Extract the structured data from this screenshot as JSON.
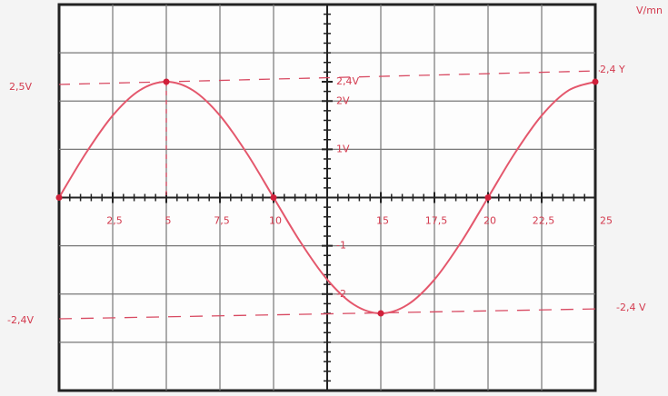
{
  "chart_data": {
    "type": "line",
    "xlim": [
      0,
      25
    ],
    "ylim": [
      -4,
      4
    ],
    "xticks": [
      {
        "value": 2.5,
        "label": "2,5"
      },
      5,
      {
        "value": 7.5,
        "label": "7,5"
      },
      10,
      15,
      {
        "value": 17.5,
        "label": "17,5"
      },
      20,
      {
        "value": 22.5,
        "label": "22,5"
      },
      25
    ],
    "yticks": [
      {
        "value": 2.4,
        "label": "2,4V"
      },
      {
        "value": 2,
        "label": "2V"
      },
      {
        "value": 1,
        "label": "1V"
      },
      -1,
      -2
    ],
    "series": [
      {
        "color": "#e4576c",
        "x": [
          0,
          1.25,
          2.5,
          3.75,
          5,
          6.25,
          7.5,
          8.75,
          10,
          11.25,
          12.5,
          13.75,
          15,
          16.25,
          17.5,
          18.75,
          20,
          21.25,
          22.5,
          23.75,
          25
        ],
        "values": [
          0,
          0.92,
          1.7,
          2.22,
          2.4,
          2.22,
          1.7,
          0.92,
          0,
          -0.92,
          -1.7,
          -2.22,
          -2.4,
          -2.22,
          -1.7,
          -0.92,
          0,
          0.92,
          1.7,
          2.22,
          2.4
        ]
      }
    ],
    "points": {
      "color": "#d0203a",
      "x": [
        0,
        5,
        10,
        15,
        20,
        25
      ],
      "values": [
        0,
        2.4,
        0,
        -2.4,
        0,
        2.4
      ]
    },
    "annotations": [
      "2,5V",
      "2,4 Y",
      "-2,4V",
      "-2,4 V",
      "V/mn"
    ]
  }
}
